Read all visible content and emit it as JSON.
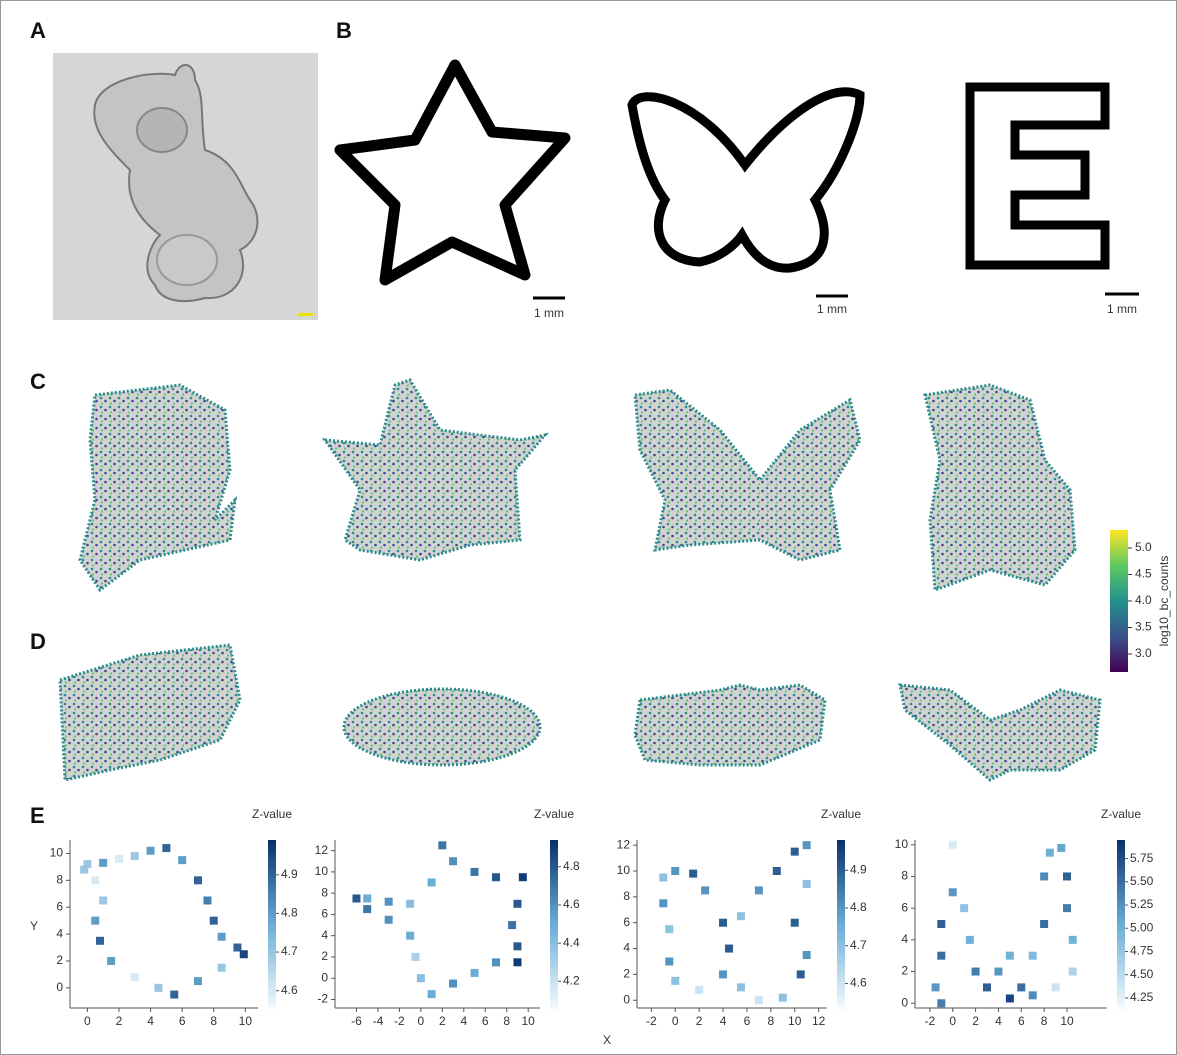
{
  "figure": {
    "panel_labels": [
      "A",
      "B",
      "C",
      "D",
      "E"
    ],
    "scale_bars": [
      "1 mm",
      "1 mm",
      "1 mm"
    ],
    "colorbar": {
      "label": "log10_bc_counts",
      "lim": [
        2.66,
        5.34
      ],
      "ticks": [
        {
          "value": 3,
          "label": "3.0"
        },
        3.5,
        {
          "value": 4,
          "label": "4.0"
        },
        4.5,
        {
          "value": 5,
          "label": "5.0"
        }
      ]
    },
    "x_label": "X",
    "y_label": "Y"
  },
  "chart_data": [
    {
      "type": "scatter",
      "colorbar_title": "Z-value",
      "xlim": [
        -1.1,
        10.8
      ],
      "ylim": [
        -1.5,
        11
      ],
      "xticks": [
        0,
        2,
        4,
        6,
        8,
        10
      ],
      "yticks": [
        0,
        2,
        4,
        6,
        8,
        10
      ],
      "zlim": [
        4.55,
        4.99
      ],
      "zticks": [
        4.6,
        4.7,
        4.8,
        4.9
      ],
      "points": [
        [
          0,
          9.2,
          4.7
        ],
        [
          1,
          9.3,
          4.8
        ],
        [
          2,
          9.6,
          4.6
        ],
        [
          3,
          9.8,
          4.7
        ],
        [
          4,
          10.2,
          4.8
        ],
        [
          5,
          10.4,
          4.9
        ],
        [
          6,
          9.5,
          4.8
        ],
        [
          7,
          8,
          4.9
        ],
        [
          7.6,
          6.5,
          4.85
        ],
        [
          8,
          5,
          4.9
        ],
        [
          8.5,
          3.8,
          4.8
        ],
        [
          9.5,
          3,
          4.9
        ],
        [
          9.9,
          2.5,
          4.95
        ],
        [
          8.5,
          1.5,
          4.7
        ],
        [
          7,
          0.5,
          4.8
        ],
        [
          5.5,
          -0.5,
          4.9
        ],
        [
          4.5,
          0,
          4.7
        ],
        [
          3,
          0.8,
          4.6
        ],
        [
          1.5,
          2,
          4.8
        ],
        [
          0.8,
          3.5,
          4.9
        ],
        [
          0.5,
          5,
          4.8
        ],
        [
          1,
          6.5,
          4.7
        ],
        [
          0.5,
          8,
          4.6
        ],
        [
          -0.2,
          8.8,
          4.7
        ]
      ]
    },
    {
      "type": "scatter",
      "colorbar_title": "Z-value",
      "xlim": [
        -8,
        11.1
      ],
      "ylim": [
        -2.8,
        13
      ],
      "xticks": [
        -6,
        -4,
        -2,
        0,
        2,
        4,
        6,
        8,
        10
      ],
      "yticks": [
        -2,
        0,
        2,
        4,
        6,
        8,
        10,
        12
      ],
      "zlim": [
        4.05,
        4.94
      ],
      "zticks": [
        4.2,
        4.4,
        4.6,
        4.8
      ],
      "points": [
        [
          -5,
          7.5,
          4.5
        ],
        [
          -3,
          7.2,
          4.6
        ],
        [
          -1,
          7,
          4.4
        ],
        [
          1,
          9,
          4.5
        ],
        [
          2,
          12.5,
          4.7
        ],
        [
          3,
          11,
          4.6
        ],
        [
          5,
          10,
          4.7
        ],
        [
          7,
          9.5,
          4.8
        ],
        [
          9.5,
          9.5,
          4.9
        ],
        [
          9,
          7,
          4.8
        ],
        [
          8.5,
          5,
          4.7
        ],
        [
          9,
          3,
          4.8
        ],
        [
          9,
          1.5,
          4.9
        ],
        [
          7,
          1.5,
          4.6
        ],
        [
          5,
          0.5,
          4.5
        ],
        [
          3,
          -0.5,
          4.6
        ],
        [
          1,
          -1.5,
          4.5
        ],
        [
          0,
          0,
          4.4
        ],
        [
          -0.5,
          2,
          4.3
        ],
        [
          -1,
          4,
          4.5
        ],
        [
          -3,
          5.5,
          4.6
        ],
        [
          -5,
          6.5,
          4.7
        ],
        [
          -6,
          7.5,
          4.8
        ]
      ]
    },
    {
      "type": "scatter",
      "colorbar_title": "Z-value",
      "xlim": [
        -3.2,
        12.7
      ],
      "ylim": [
        -0.6,
        12.4
      ],
      "xticks": [
        -2,
        0,
        2,
        4,
        6,
        8,
        10,
        12
      ],
      "yticks": [
        0,
        2,
        4,
        6,
        8,
        10,
        12
      ],
      "zlim": [
        4.53,
        4.98
      ],
      "zticks": [
        4.6,
        4.7,
        4.8,
        4.9
      ],
      "points": [
        [
          -1,
          7.5,
          4.8
        ],
        [
          -1,
          9.5,
          4.7
        ],
        [
          0,
          10,
          4.8
        ],
        [
          1.5,
          9.8,
          4.9
        ],
        [
          2.5,
          8.5,
          4.8
        ],
        [
          4,
          6,
          4.9
        ],
        [
          4.5,
          4,
          4.9
        ],
        [
          5.5,
          6.5,
          4.7
        ],
        [
          7,
          8.5,
          4.8
        ],
        [
          8.5,
          10,
          4.9
        ],
        [
          10,
          11.5,
          4.9
        ],
        [
          11,
          12,
          4.8
        ],
        [
          11,
          9,
          4.7
        ],
        [
          10,
          6,
          4.9
        ],
        [
          11,
          3.5,
          4.8
        ],
        [
          10.5,
          2,
          4.9
        ],
        [
          9,
          0.2,
          4.7
        ],
        [
          7,
          0,
          4.6
        ],
        [
          5.5,
          1,
          4.7
        ],
        [
          4,
          2,
          4.8
        ],
        [
          2,
          0.8,
          4.6
        ],
        [
          0,
          1.5,
          4.7
        ],
        [
          -0.5,
          3,
          4.8
        ],
        [
          -0.5,
          5.5,
          4.7
        ]
      ]
    },
    {
      "type": "scatter",
      "colorbar_title": "Z-value",
      "xlim": [
        -3.3,
        13.5
      ],
      "ylim": [
        -0.3,
        10.3
      ],
      "xticks": [
        -2,
        0,
        2,
        4,
        6,
        8,
        10
      ],
      "yticks": [
        0,
        2,
        4,
        6,
        8,
        10
      ],
      "zlim": [
        4.12,
        5.95
      ],
      "zticks": [
        {
          "value": 4.25,
          "label": "4.25"
        },
        {
          "value": 4.5,
          "label": "4.50"
        },
        4.75,
        {
          "value": 5,
          "label": "5.00"
        },
        5.25,
        {
          "value": 5.5,
          "label": "5.50"
        },
        5.75
      ],
      "points": [
        [
          -1.5,
          1,
          5.2
        ],
        [
          -1,
          3,
          5.5
        ],
        [
          -1,
          5,
          5.6
        ],
        [
          0,
          7,
          5.2
        ],
        [
          1,
          6,
          4.8
        ],
        [
          1.5,
          4,
          5.0
        ],
        [
          2,
          2,
          5.4
        ],
        [
          3,
          1,
          5.6
        ],
        [
          4,
          2,
          5.2
        ],
        [
          5,
          3,
          5.0
        ],
        [
          6,
          1,
          5.5
        ],
        [
          7,
          0.5,
          5.3
        ],
        [
          7,
          3,
          4.9
        ],
        [
          8,
          5,
          5.5
        ],
        [
          8,
          8,
          5.3
        ],
        [
          8.5,
          9.5,
          5.0
        ],
        [
          9.5,
          9.8,
          5.1
        ],
        [
          10,
          8,
          5.6
        ],
        [
          10,
          6,
          5.4
        ],
        [
          10.5,
          4,
          5.0
        ],
        [
          10.5,
          2,
          4.6
        ],
        [
          9,
          1,
          4.4
        ],
        [
          0,
          10,
          4.3
        ],
        [
          -1,
          0,
          5.4
        ],
        [
          5,
          0.3,
          5.8
        ]
      ]
    }
  ]
}
